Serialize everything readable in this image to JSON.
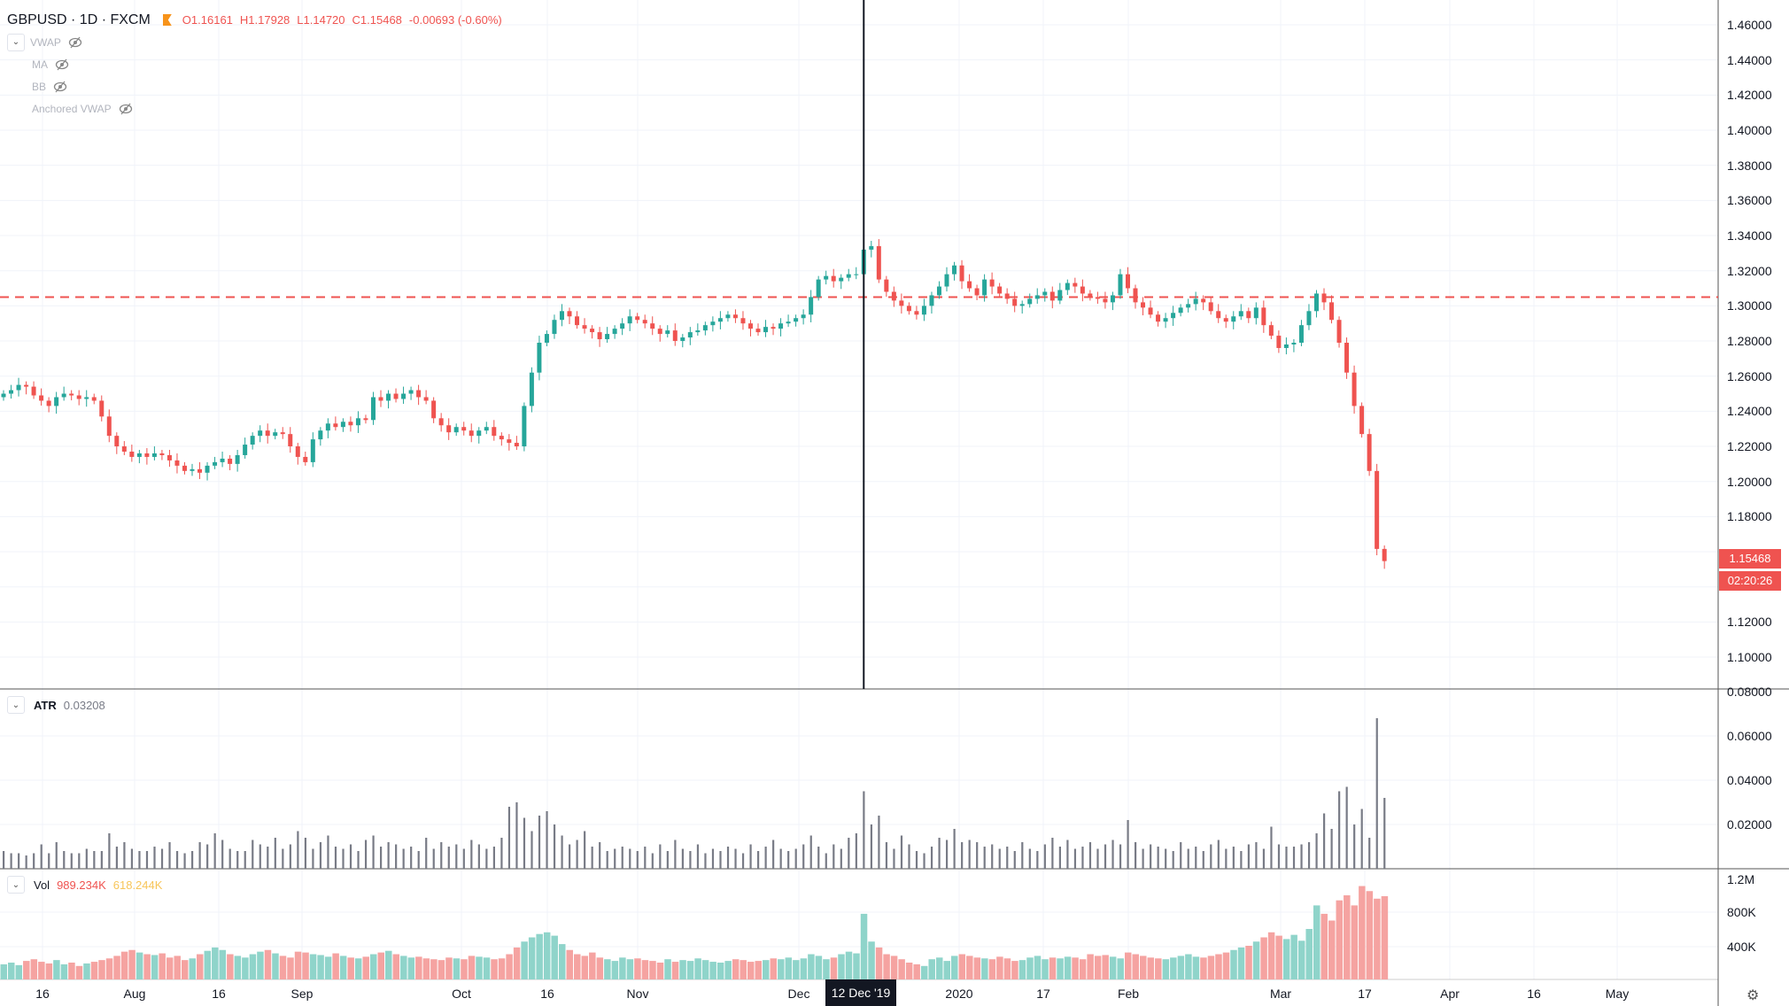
{
  "header": {
    "symbol": "GBPUSD",
    "interval": "1D",
    "exchange": "FXCM",
    "open": "O1.16161",
    "high": "H1.17928",
    "low": "L1.14720",
    "close": "C1.15468",
    "change": "-0.00693 (-0.60%)"
  },
  "indicators": [
    {
      "label": "VWAP",
      "icon": "eye-off-icon"
    },
    {
      "label": "MA",
      "icon": "eye-off-icon"
    },
    {
      "label": "BB",
      "icon": "eye-off-icon"
    },
    {
      "label": "Anchored VWAP",
      "icon": "eye-off-icon"
    }
  ],
  "atr_legend": {
    "name": "ATR",
    "value": "0.03208"
  },
  "vol_legend": {
    "name": "Vol",
    "value": "989.234K",
    "ma_value": "618.244K"
  },
  "price_tag": {
    "price": "1.15468",
    "countdown": "02:20:26"
  },
  "crosshair_date": "12 Dec '19",
  "colors": {
    "up": "#26a69a",
    "down": "#ef5350",
    "vol_up": "#8fd4ca",
    "vol_down": "#f5a3a1",
    "grid": "#f0f3fa",
    "hline": "#ef5350",
    "vol_ma_text": "#f7c55a"
  },
  "chart_data": [
    {
      "type": "candlestick",
      "symbol": "GBPUSD",
      "horizontal_line": 1.305,
      "crosshair_index": 114,
      "ylim": [
        1.09,
        1.47
      ],
      "y_ticks": [
        "1.46000",
        "1.44000",
        "1.42000",
        "1.40000",
        "1.38000",
        "1.36000",
        "1.34000",
        "1.32000",
        "1.30000",
        "1.28000",
        "1.26000",
        "1.24000",
        "1.22000",
        "1.20000",
        "1.18000",
        "1.12000",
        "1.10000"
      ],
      "x_ticks": [
        "16",
        "Aug",
        "16",
        "Sep",
        "Oct",
        "16",
        "Nov",
        "Dec",
        "2020",
        "17",
        "Feb",
        "Mar",
        "17",
        "Apr",
        "16",
        "May"
      ],
      "close": [
        1.25,
        1.252,
        1.255,
        1.254,
        1.249,
        1.246,
        1.243,
        1.248,
        1.25,
        1.249,
        1.247,
        1.248,
        1.246,
        1.237,
        1.226,
        1.22,
        1.217,
        1.214,
        1.216,
        1.214,
        1.216,
        1.215,
        1.212,
        1.209,
        1.206,
        1.207,
        1.205,
        1.209,
        1.211,
        1.213,
        1.21,
        1.215,
        1.221,
        1.226,
        1.229,
        1.226,
        1.228,
        1.227,
        1.22,
        1.214,
        1.211,
        1.224,
        1.229,
        1.233,
        1.231,
        1.234,
        1.232,
        1.236,
        1.235,
        1.248,
        1.246,
        1.25,
        1.247,
        1.25,
        1.252,
        1.248,
        1.246,
        1.236,
        1.232,
        1.228,
        1.231,
        1.229,
        1.226,
        1.229,
        1.231,
        1.226,
        1.224,
        1.222,
        1.22,
        1.243,
        1.262,
        1.279,
        1.284,
        1.292,
        1.297,
        1.294,
        1.289,
        1.287,
        1.285,
        1.281,
        1.284,
        1.287,
        1.29,
        1.294,
        1.292,
        1.29,
        1.287,
        1.284,
        1.286,
        1.28,
        1.282,
        1.285,
        1.286,
        1.289,
        1.291,
        1.293,
        1.295,
        1.293,
        1.29,
        1.287,
        1.285,
        1.288,
        1.287,
        1.29,
        1.291,
        1.293,
        1.295,
        1.305,
        1.315,
        1.317,
        1.314,
        1.316,
        1.318,
        1.318,
        1.332,
        1.334,
        1.315,
        1.308,
        1.303,
        1.3,
        1.297,
        1.295,
        1.3,
        1.306,
        1.311,
        1.318,
        1.323,
        1.314,
        1.31,
        1.306,
        1.315,
        1.311,
        1.307,
        1.304,
        1.3,
        1.301,
        1.304,
        1.306,
        1.308,
        1.303,
        1.309,
        1.313,
        1.311,
        1.307,
        1.305,
        1.304,
        1.302,
        1.306,
        1.318,
        1.31,
        1.302,
        1.299,
        1.295,
        1.291,
        1.293,
        1.296,
        1.299,
        1.301,
        1.304,
        1.302,
        1.297,
        1.293,
        1.291,
        1.294,
        1.297,
        1.293,
        1.299,
        1.289,
        1.283,
        1.276,
        1.278,
        1.279,
        1.289,
        1.297,
        1.307,
        1.302,
        1.292,
        1.279,
        1.262,
        1.243,
        1.227,
        1.206,
        1.16161,
        1.15468
      ]
    },
    {
      "type": "bar",
      "name": "ATR",
      "ylim": [
        0,
        0.08
      ],
      "y_ticks": [
        "0.08000",
        "0.06000",
        "0.04000",
        "0.02000"
      ],
      "values": [
        0.008,
        0.007,
        0.007,
        0.006,
        0.007,
        0.011,
        0.007,
        0.012,
        0.008,
        0.007,
        0.007,
        0.009,
        0.008,
        0.008,
        0.016,
        0.01,
        0.012,
        0.009,
        0.008,
        0.008,
        0.01,
        0.009,
        0.012,
        0.008,
        0.007,
        0.008,
        0.012,
        0.011,
        0.016,
        0.013,
        0.009,
        0.008,
        0.008,
        0.013,
        0.011,
        0.01,
        0.014,
        0.009,
        0.011,
        0.017,
        0.014,
        0.009,
        0.012,
        0.015,
        0.01,
        0.009,
        0.011,
        0.008,
        0.013,
        0.015,
        0.01,
        0.012,
        0.011,
        0.009,
        0.01,
        0.008,
        0.014,
        0.009,
        0.012,
        0.01,
        0.011,
        0.009,
        0.013,
        0.011,
        0.009,
        0.01,
        0.014,
        0.028,
        0.03,
        0.023,
        0.017,
        0.024,
        0.026,
        0.02,
        0.015,
        0.011,
        0.013,
        0.017,
        0.01,
        0.012,
        0.008,
        0.009,
        0.01,
        0.009,
        0.008,
        0.01,
        0.007,
        0.011,
        0.008,
        0.013,
        0.009,
        0.008,
        0.011,
        0.007,
        0.009,
        0.008,
        0.01,
        0.009,
        0.007,
        0.011,
        0.008,
        0.01,
        0.013,
        0.009,
        0.008,
        0.009,
        0.011,
        0.015,
        0.01,
        0.007,
        0.011,
        0.009,
        0.014,
        0.016,
        0.035,
        0.02,
        0.024,
        0.012,
        0.009,
        0.015,
        0.011,
        0.008,
        0.007,
        0.01,
        0.014,
        0.013,
        0.018,
        0.012,
        0.013,
        0.012,
        0.01,
        0.011,
        0.009,
        0.01,
        0.008,
        0.012,
        0.009,
        0.008,
        0.011,
        0.014,
        0.01,
        0.013,
        0.009,
        0.01,
        0.012,
        0.009,
        0.011,
        0.013,
        0.011,
        0.022,
        0.012,
        0.009,
        0.011,
        0.01,
        0.009,
        0.008,
        0.012,
        0.009,
        0.01,
        0.008,
        0.011,
        0.013,
        0.009,
        0.01,
        0.008,
        0.011,
        0.012,
        0.009,
        0.019,
        0.011,
        0.01,
        0.01,
        0.011,
        0.012,
        0.016,
        0.025,
        0.018,
        0.035,
        0.037,
        0.02,
        0.027,
        0.014,
        0.068,
        0.032
      ]
    },
    {
      "type": "bar",
      "name": "Vol",
      "ylim": [
        0,
        1300000
      ],
      "y_ticks": [
        "1.2M",
        "800K",
        "400K"
      ],
      "values": [
        180000,
        200000,
        170000,
        220000,
        240000,
        210000,
        190000,
        230000,
        180000,
        200000,
        160000,
        190000,
        210000,
        230000,
        250000,
        280000,
        330000,
        350000,
        320000,
        300000,
        290000,
        310000,
        260000,
        280000,
        230000,
        250000,
        300000,
        340000,
        380000,
        350000,
        300000,
        280000,
        260000,
        300000,
        330000,
        350000,
        310000,
        280000,
        260000,
        330000,
        320000,
        300000,
        290000,
        270000,
        310000,
        280000,
        260000,
        250000,
        270000,
        300000,
        320000,
        340000,
        300000,
        280000,
        260000,
        270000,
        250000,
        240000,
        230000,
        260000,
        250000,
        240000,
        280000,
        270000,
        260000,
        240000,
        250000,
        300000,
        380000,
        450000,
        500000,
        540000,
        560000,
        520000,
        420000,
        350000,
        300000,
        280000,
        320000,
        260000,
        240000,
        220000,
        260000,
        240000,
        250000,
        230000,
        220000,
        200000,
        240000,
        210000,
        230000,
        220000,
        250000,
        230000,
        210000,
        200000,
        220000,
        240000,
        230000,
        210000,
        220000,
        230000,
        250000,
        240000,
        260000,
        230000,
        250000,
        300000,
        280000,
        240000,
        260000,
        300000,
        330000,
        310000,
        780000,
        450000,
        380000,
        300000,
        280000,
        240000,
        200000,
        180000,
        160000,
        240000,
        260000,
        220000,
        280000,
        300000,
        280000,
        260000,
        250000,
        240000,
        270000,
        250000,
        220000,
        230000,
        260000,
        280000,
        240000,
        260000,
        250000,
        270000,
        260000,
        240000,
        300000,
        280000,
        290000,
        270000,
        250000,
        320000,
        300000,
        280000,
        260000,
        250000,
        240000,
        260000,
        280000,
        300000,
        270000,
        260000,
        280000,
        300000,
        320000,
        350000,
        380000,
        400000,
        450000,
        500000,
        560000,
        520000,
        480000,
        530000,
        460000,
        600000,
        880000,
        780000,
        700000,
        940000,
        1000000,
        880000,
        1110000,
        1050000,
        960000,
        989234
      ]
    }
  ]
}
